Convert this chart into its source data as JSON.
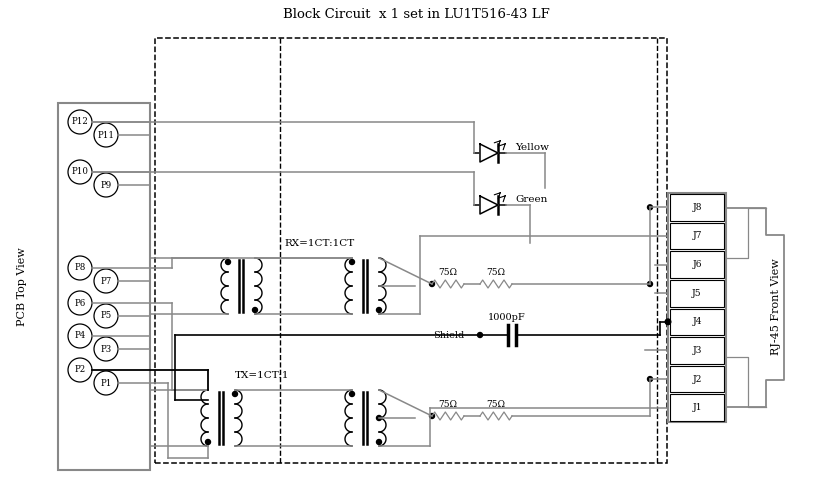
{
  "title": "Block Circuit  x 1 set in LU1T516-43 LF",
  "bg": "#ffffff",
  "lc": "#000000",
  "gc": "#888888",
  "pcb_label": "PCB Top View",
  "rj45_label": "RJ-45 Front View",
  "rx_label": "RX=1CT:1CT",
  "tx_label": "TX=1CT:1",
  "shield_label": "Shield",
  "cap_label": "1000pF",
  "yellow_label": "Yellow",
  "green_label": "Green",
  "r75": "75Ω"
}
